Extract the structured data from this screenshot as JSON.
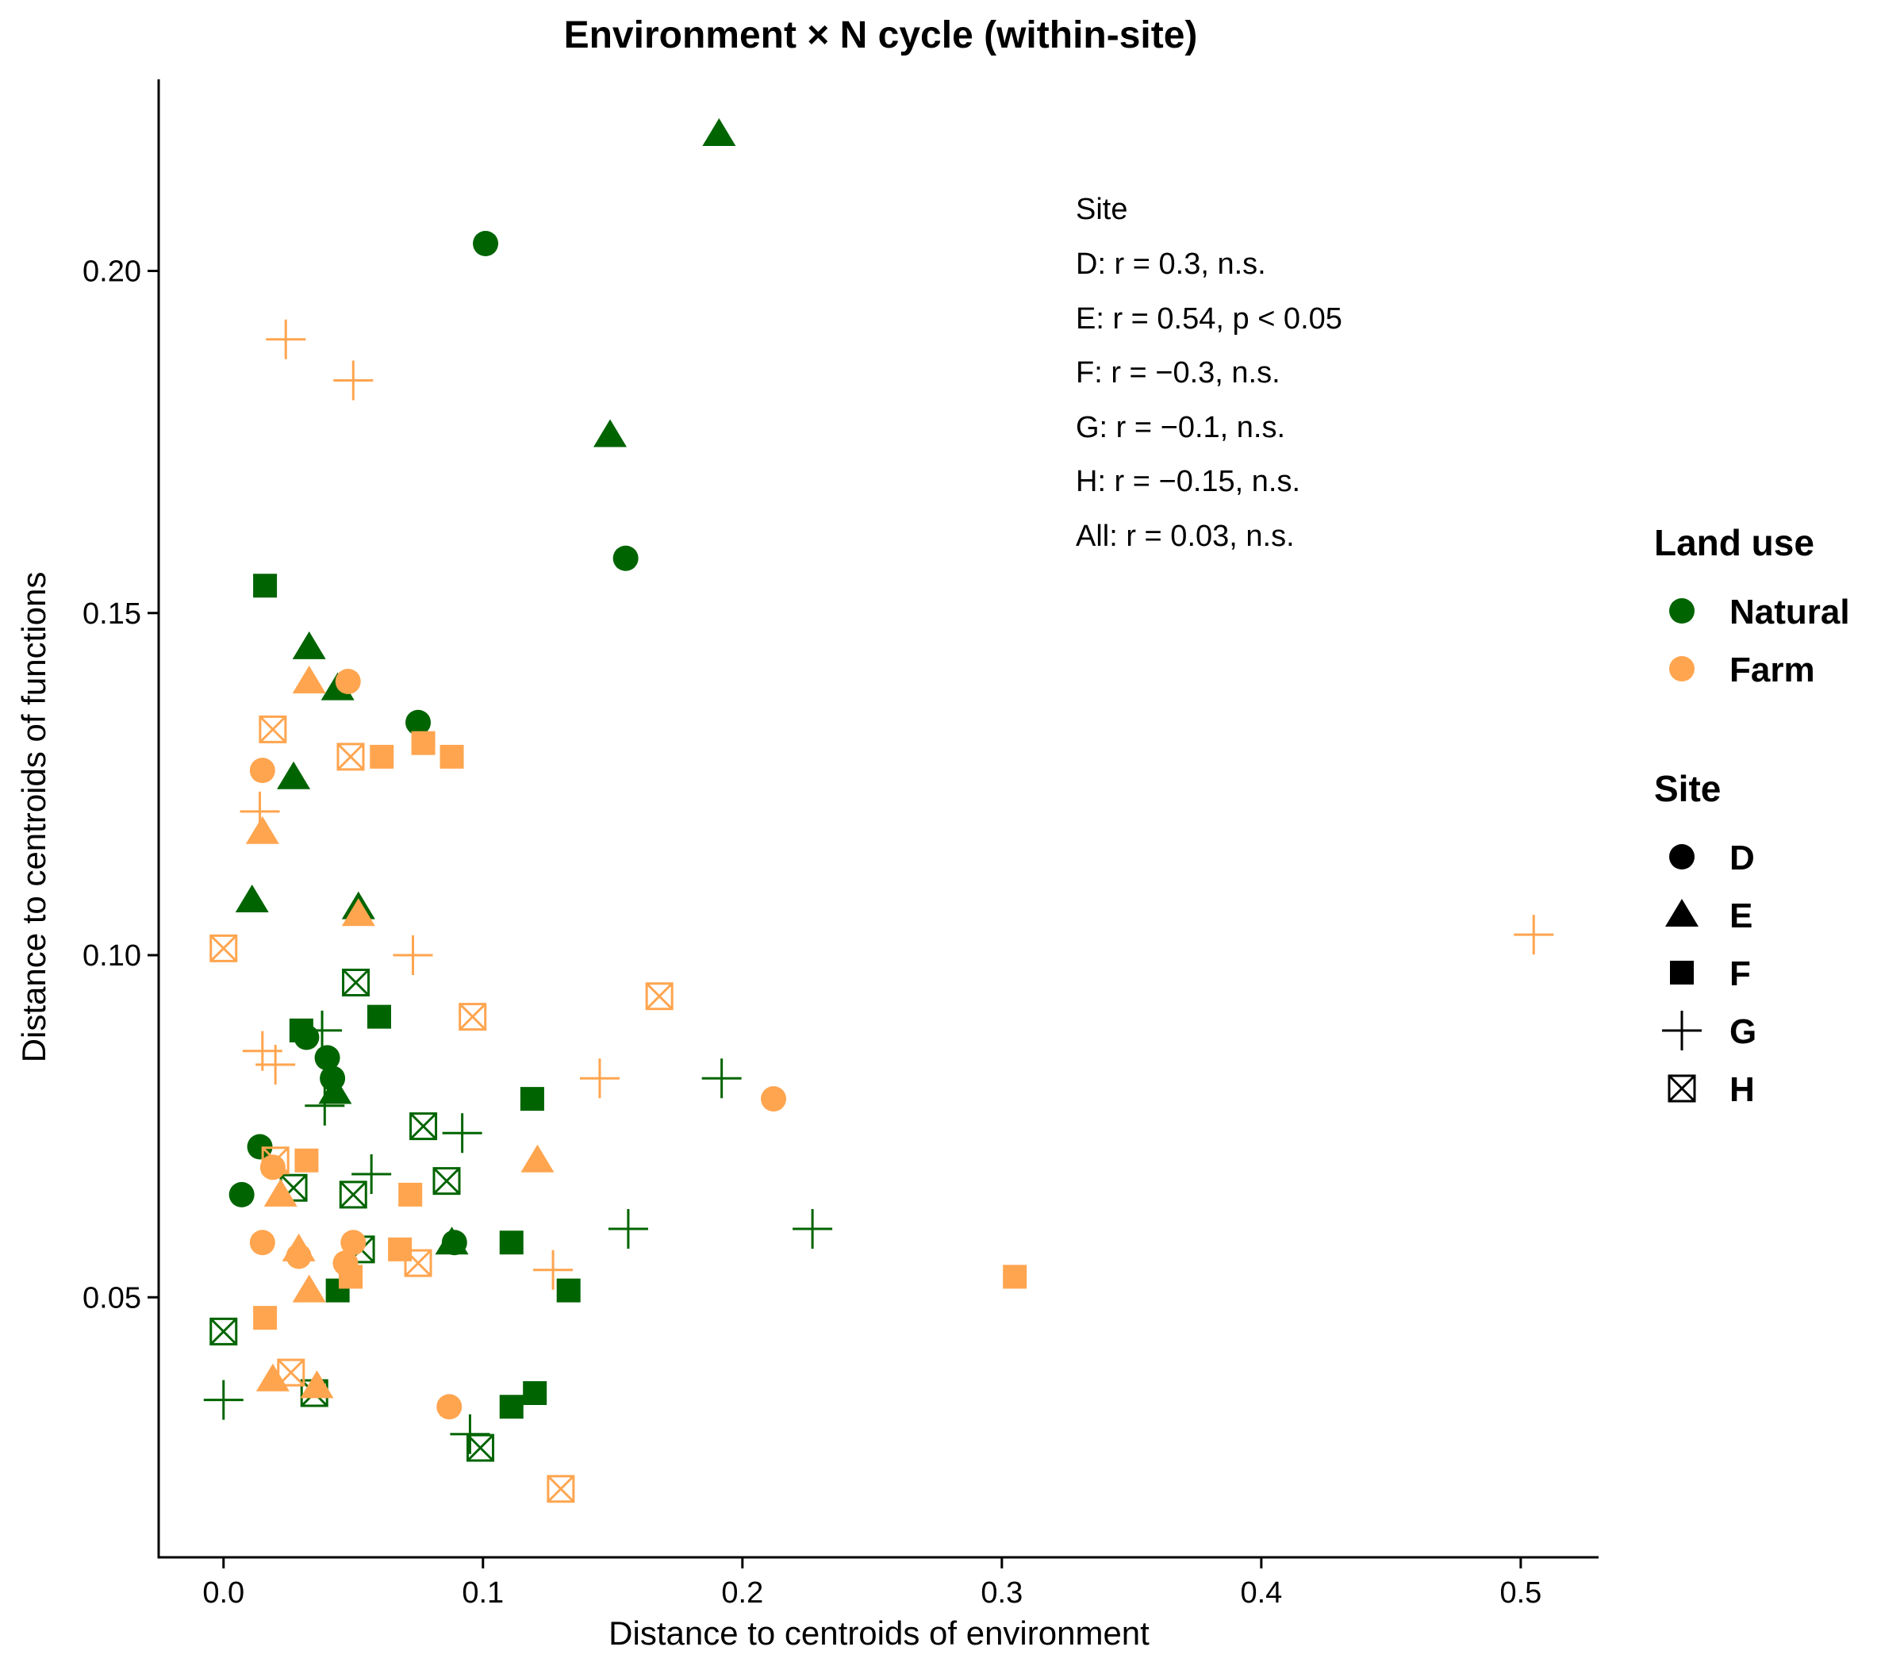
{
  "chart_data": {
    "type": "scatter",
    "title": "Environment × N cycle (within-site)",
    "xlabel": "Distance to centroids of environment",
    "ylabel": "Distance to centroids of functions",
    "xlim": [
      -0.025,
      0.53
    ],
    "ylim": [
      0.012,
      0.228
    ],
    "x_ticks": [
      0.0,
      0.1,
      0.2,
      0.3,
      0.4,
      0.5
    ],
    "x_tick_labels": [
      "0.0",
      "0.1",
      "0.2",
      "0.3",
      "0.4",
      "0.5"
    ],
    "y_ticks": [
      0.05,
      0.1,
      0.15,
      0.2
    ],
    "y_tick_labels": [
      "0.05",
      "0.10",
      "0.15",
      "0.20"
    ],
    "grid": false,
    "annotation": {
      "title": "Site",
      "lines": [
        "D: r = 0.3, n.s.",
        "E: r = 0.54, p < 0.05",
        "F: r = −0.3, n.s.",
        "G: r = −0.1, n.s.",
        "H: r = −0.15, n.s.",
        "All: r = 0.03, n.s."
      ]
    },
    "legend": {
      "placement": "right",
      "land_use_title": "Land use",
      "land_use": [
        {
          "name": "Natural",
          "color": "#006400"
        },
        {
          "name": "Farm",
          "color": "#FFA54F"
        }
      ],
      "site_title": "Site",
      "sites": [
        {
          "name": "D",
          "shape": "circle"
        },
        {
          "name": "E",
          "shape": "triangle"
        },
        {
          "name": "F",
          "shape": "square"
        },
        {
          "name": "G",
          "shape": "plus"
        },
        {
          "name": "H",
          "shape": "boxed-x"
        }
      ]
    },
    "series": [
      {
        "land_use": "Natural",
        "site": "D",
        "points": [
          [
            0.101,
            0.204
          ],
          [
            0.155,
            0.158
          ],
          [
            0.075,
            0.134
          ],
          [
            0.032,
            0.088
          ],
          [
            0.04,
            0.085
          ],
          [
            0.042,
            0.082
          ],
          [
            0.014,
            0.072
          ],
          [
            0.007,
            0.065
          ],
          [
            0.089,
            0.058
          ]
        ]
      },
      {
        "land_use": "Natural",
        "site": "E",
        "points": [
          [
            0.191,
            0.22
          ],
          [
            0.149,
            0.176
          ],
          [
            0.033,
            0.145
          ],
          [
            0.044,
            0.139
          ],
          [
            0.027,
            0.126
          ],
          [
            0.011,
            0.108
          ],
          [
            0.052,
            0.107
          ],
          [
            0.043,
            0.08
          ],
          [
            0.088,
            0.058
          ]
        ]
      },
      {
        "land_use": "Natural",
        "site": "F",
        "points": [
          [
            0.016,
            0.154
          ],
          [
            0.03,
            0.089
          ],
          [
            0.06,
            0.091
          ],
          [
            0.119,
            0.079
          ],
          [
            0.111,
            0.058
          ],
          [
            0.044,
            0.051
          ],
          [
            0.133,
            0.051
          ],
          [
            0.111,
            0.034
          ],
          [
            0.12,
            0.036
          ]
        ]
      },
      {
        "land_use": "Natural",
        "site": "G",
        "points": [
          [
            0.038,
            0.089
          ],
          [
            0.039,
            0.078
          ],
          [
            0.057,
            0.068
          ],
          [
            0.092,
            0.074
          ],
          [
            0.192,
            0.082
          ],
          [
            0.156,
            0.06
          ],
          [
            0.227,
            0.06
          ],
          [
            0.0,
            0.035
          ],
          [
            0.095,
            0.03
          ]
        ]
      },
      {
        "land_use": "Natural",
        "site": "H",
        "points": [
          [
            0.051,
            0.096
          ],
          [
            0.077,
            0.075
          ],
          [
            0.086,
            0.067
          ],
          [
            0.027,
            0.066
          ],
          [
            0.05,
            0.065
          ],
          [
            0.053,
            0.057
          ],
          [
            0.0,
            0.045
          ],
          [
            0.035,
            0.036
          ],
          [
            0.099,
            0.028
          ]
        ]
      },
      {
        "land_use": "Farm",
        "site": "D",
        "points": [
          [
            0.048,
            0.14
          ],
          [
            0.015,
            0.127
          ],
          [
            0.019,
            0.069
          ],
          [
            0.212,
            0.079
          ],
          [
            0.015,
            0.058
          ],
          [
            0.05,
            0.058
          ],
          [
            0.029,
            0.056
          ],
          [
            0.047,
            0.055
          ],
          [
            0.087,
            0.034
          ]
        ]
      },
      {
        "land_use": "Farm",
        "site": "E",
        "points": [
          [
            0.033,
            0.14
          ],
          [
            0.015,
            0.118
          ],
          [
            0.052,
            0.106
          ],
          [
            0.121,
            0.07
          ],
          [
            0.022,
            0.065
          ],
          [
            0.029,
            0.057
          ],
          [
            0.033,
            0.051
          ],
          [
            0.019,
            0.038
          ],
          [
            0.036,
            0.037
          ]
        ]
      },
      {
        "land_use": "Farm",
        "site": "F",
        "points": [
          [
            0.061,
            0.129
          ],
          [
            0.077,
            0.131
          ],
          [
            0.088,
            0.129
          ],
          [
            0.032,
            0.07
          ],
          [
            0.072,
            0.065
          ],
          [
            0.068,
            0.057
          ],
          [
            0.049,
            0.053
          ],
          [
            0.305,
            0.053
          ],
          [
            0.016,
            0.047
          ]
        ]
      },
      {
        "land_use": "Farm",
        "site": "G",
        "points": [
          [
            0.024,
            0.19
          ],
          [
            0.05,
            0.184
          ],
          [
            0.014,
            0.121
          ],
          [
            0.073,
            0.1
          ],
          [
            0.015,
            0.086
          ],
          [
            0.02,
            0.084
          ],
          [
            0.145,
            0.082
          ],
          [
            0.127,
            0.054
          ],
          [
            0.505,
            0.103
          ]
        ]
      },
      {
        "land_use": "Farm",
        "site": "H",
        "points": [
          [
            0.019,
            0.133
          ],
          [
            0.049,
            0.129
          ],
          [
            0.0,
            0.101
          ],
          [
            0.096,
            0.091
          ],
          [
            0.168,
            0.094
          ],
          [
            0.02,
            0.07
          ],
          [
            0.075,
            0.055
          ],
          [
            0.026,
            0.039
          ],
          [
            0.13,
            0.022
          ]
        ]
      }
    ]
  }
}
